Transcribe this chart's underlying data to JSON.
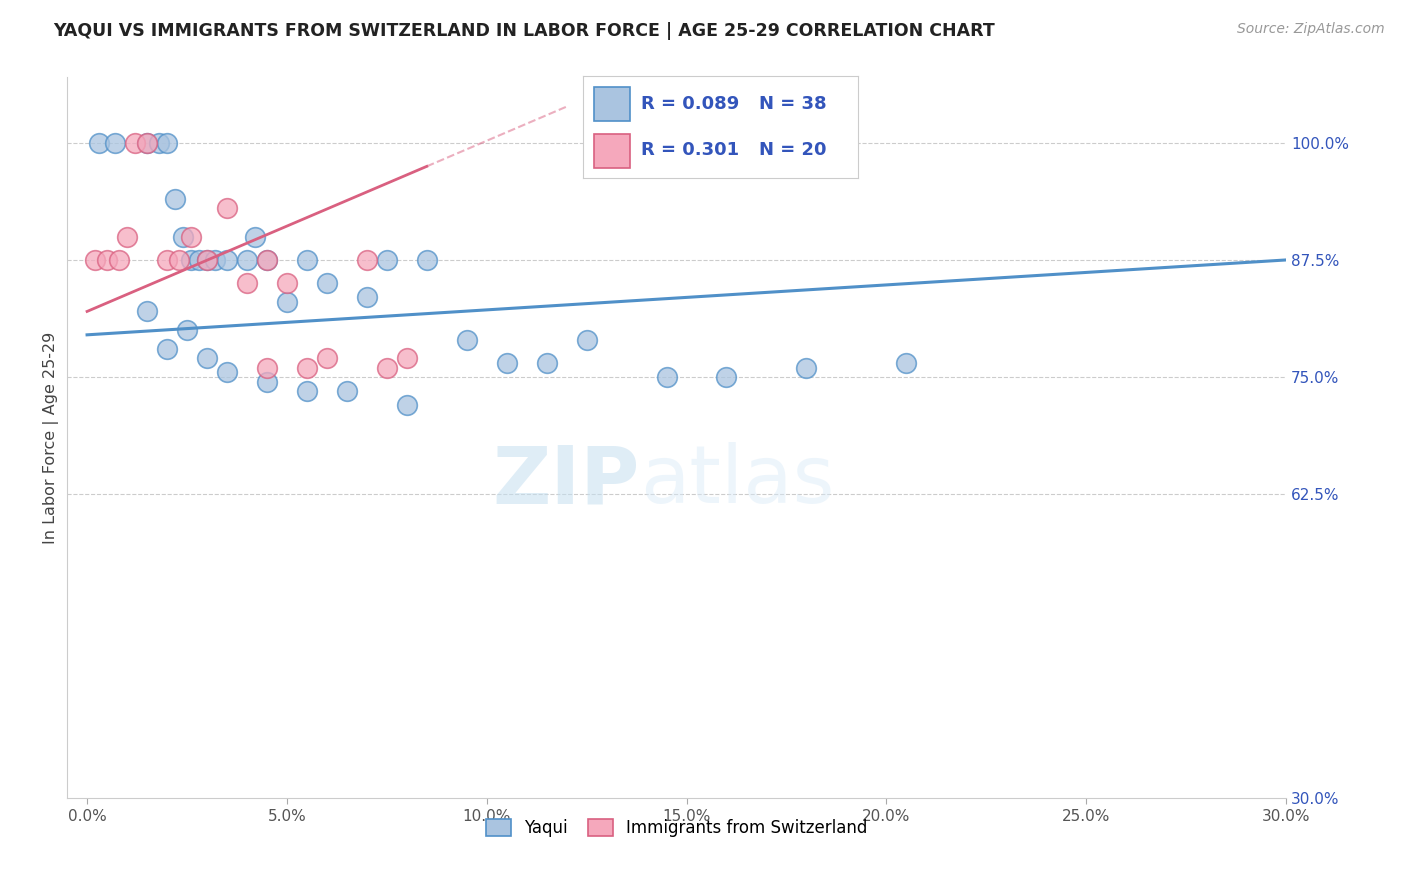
{
  "title": "YAQUI VS IMMIGRANTS FROM SWITZERLAND IN LABOR FORCE | AGE 25-29 CORRELATION CHART",
  "source": "Source: ZipAtlas.com",
  "ylabel": "In Labor Force | Age 25-29",
  "xlabel_vals": [
    0.0,
    5.0,
    10.0,
    15.0,
    20.0,
    25.0,
    30.0
  ],
  "ylabel_vals": [
    62.5,
    75.0,
    87.5,
    100.0
  ],
  "ylabel_right_labels": [
    "100.0%",
    "87.5%",
    "75.0%",
    "62.5%",
    "30.0%"
  ],
  "ylabel_right_vals": [
    100.0,
    87.5,
    75.0,
    62.5,
    30.0
  ],
  "xlim": [
    -0.5,
    30.0
  ],
  "ylim": [
    30.0,
    107.0
  ],
  "blue_label": "Yaqui",
  "pink_label": "Immigrants from Switzerland",
  "blue_R": "0.089",
  "blue_N": "38",
  "pink_R": "0.301",
  "pink_N": "20",
  "blue_color": "#aac4e0",
  "pink_color": "#f5a8bc",
  "blue_edge_color": "#5090c8",
  "pink_edge_color": "#d96080",
  "blue_x": [
    0.3,
    0.7,
    1.5,
    1.8,
    2.0,
    2.2,
    2.4,
    2.6,
    2.8,
    3.0,
    3.2,
    3.5,
    4.0,
    4.2,
    4.5,
    5.0,
    5.5,
    6.0,
    7.0,
    7.5,
    8.5,
    9.5,
    10.5,
    11.5,
    12.5,
    14.5,
    16.0,
    18.0,
    1.5,
    2.0,
    2.5,
    3.0,
    3.5,
    4.5,
    5.5,
    6.5,
    8.0,
    20.5
  ],
  "blue_y": [
    100.0,
    100.0,
    100.0,
    100.0,
    100.0,
    94.0,
    90.0,
    87.5,
    87.5,
    87.5,
    87.5,
    87.5,
    87.5,
    90.0,
    87.5,
    83.0,
    87.5,
    85.0,
    83.5,
    87.5,
    87.5,
    79.0,
    76.5,
    76.5,
    79.0,
    75.0,
    75.0,
    76.0,
    82.0,
    78.0,
    80.0,
    77.0,
    75.5,
    74.5,
    73.5,
    73.5,
    72.0,
    76.5
  ],
  "pink_x": [
    0.2,
    0.5,
    0.8,
    1.0,
    1.2,
    1.5,
    2.0,
    2.3,
    2.6,
    3.0,
    3.5,
    4.0,
    4.5,
    5.0,
    6.0,
    7.0,
    7.5,
    8.0,
    4.5,
    5.5
  ],
  "pink_y": [
    87.5,
    87.5,
    87.5,
    90.0,
    100.0,
    100.0,
    87.5,
    87.5,
    90.0,
    87.5,
    93.0,
    85.0,
    87.5,
    85.0,
    77.0,
    87.5,
    76.0,
    77.0,
    76.0,
    76.0
  ],
  "blue_trend_x": [
    0.0,
    30.0
  ],
  "blue_trend_y": [
    79.5,
    87.5
  ],
  "pink_trend_x": [
    0.0,
    8.5
  ],
  "pink_trend_y": [
    82.0,
    97.5
  ],
  "watermark_zip": "ZIP",
  "watermark_atlas": "atlas",
  "background_color": "#ffffff",
  "title_fontsize": 12.5,
  "legend_color": "#3355bb",
  "grid_color": "#cccccc",
  "dot_size": 200
}
